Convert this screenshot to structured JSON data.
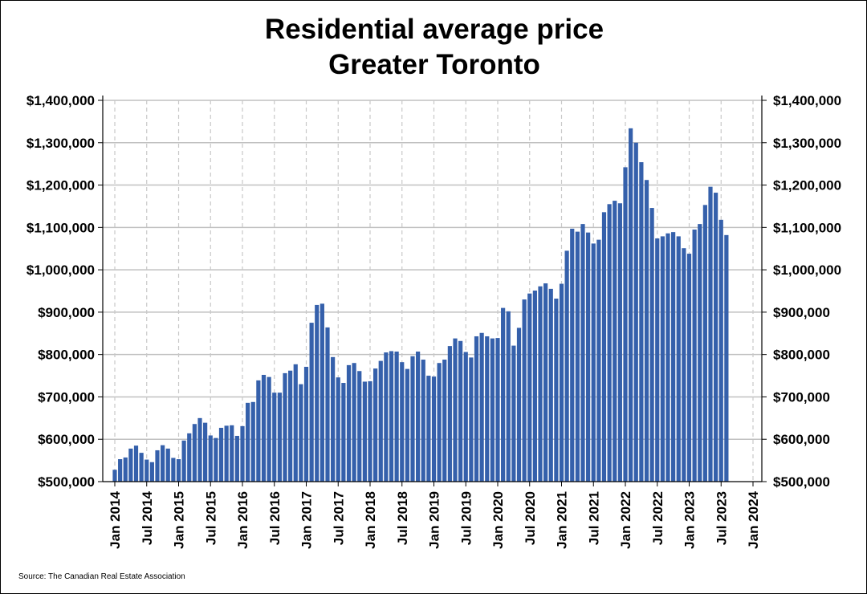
{
  "chart_data": {
    "type": "bar",
    "title_line1": "Residential average price",
    "title_line2": "Greater Toronto",
    "source": "Source: The Canadian Real Estate Association",
    "xlabel": "",
    "ylabel": "",
    "ylim": [
      500000,
      1400000
    ],
    "xlim": [
      "Jan 2014",
      "Jan 2024"
    ],
    "grid": {
      "horizontal": true,
      "vertical_dashed": true
    },
    "bar_color": "#3560ab",
    "start_month": "Jan 2014",
    "y_ticks": [
      "$500,000",
      "$600,000",
      "$700,000",
      "$800,000",
      "$900,000",
      "$1,000,000",
      "$1,100,000",
      "$1,200,000",
      "$1,300,000",
      "$1,400,000"
    ],
    "x_ticks": [
      "Jan 2014",
      "Jul 2014",
      "Jan 2015",
      "Jul 2015",
      "Jan 2016",
      "Jul 2016",
      "Jan 2017",
      "Jul 2017",
      "Jan 2018",
      "Jul 2018",
      "Jan 2019",
      "Jul 2019",
      "Jan 2020",
      "Jul 2020",
      "Jan 2021",
      "Jul 2021",
      "Jan 2022",
      "Jul 2022",
      "Jan 2023",
      "Jul 2023",
      "Jan 2024"
    ],
    "values": [
      528000,
      553000,
      557000,
      578000,
      585000,
      568000,
      552000,
      546000,
      574000,
      586000,
      578000,
      556000,
      553000,
      597000,
      614000,
      636000,
      650000,
      639000,
      609000,
      603000,
      627000,
      632000,
      633000,
      608000,
      631000,
      686000,
      688000,
      739000,
      752000,
      747000,
      710000,
      710000,
      756000,
      762000,
      777000,
      730000,
      771000,
      875000,
      917000,
      920000,
      864000,
      794000,
      746000,
      733000,
      775000,
      780000,
      761000,
      736000,
      737000,
      767000,
      785000,
      805000,
      808000,
      807000,
      782000,
      766000,
      796000,
      807000,
      788000,
      750000,
      748000,
      780000,
      788000,
      820000,
      838000,
      832000,
      806000,
      793000,
      843000,
      851000,
      843000,
      838000,
      839000,
      910000,
      902000,
      821000,
      863000,
      930000,
      944000,
      951000,
      961000,
      968000,
      955000,
      932000,
      967000,
      1045000,
      1097000,
      1090000,
      1108000,
      1088000,
      1062000,
      1071000,
      1136000,
      1155000,
      1163000,
      1157000,
      1242000,
      1334000,
      1300000,
      1254000,
      1212000,
      1146000,
      1074000,
      1079000,
      1086000,
      1089000,
      1079000,
      1051000,
      1038000,
      1095000,
      1108000,
      1153000,
      1196000,
      1182000,
      1118000,
      1082000
    ]
  }
}
